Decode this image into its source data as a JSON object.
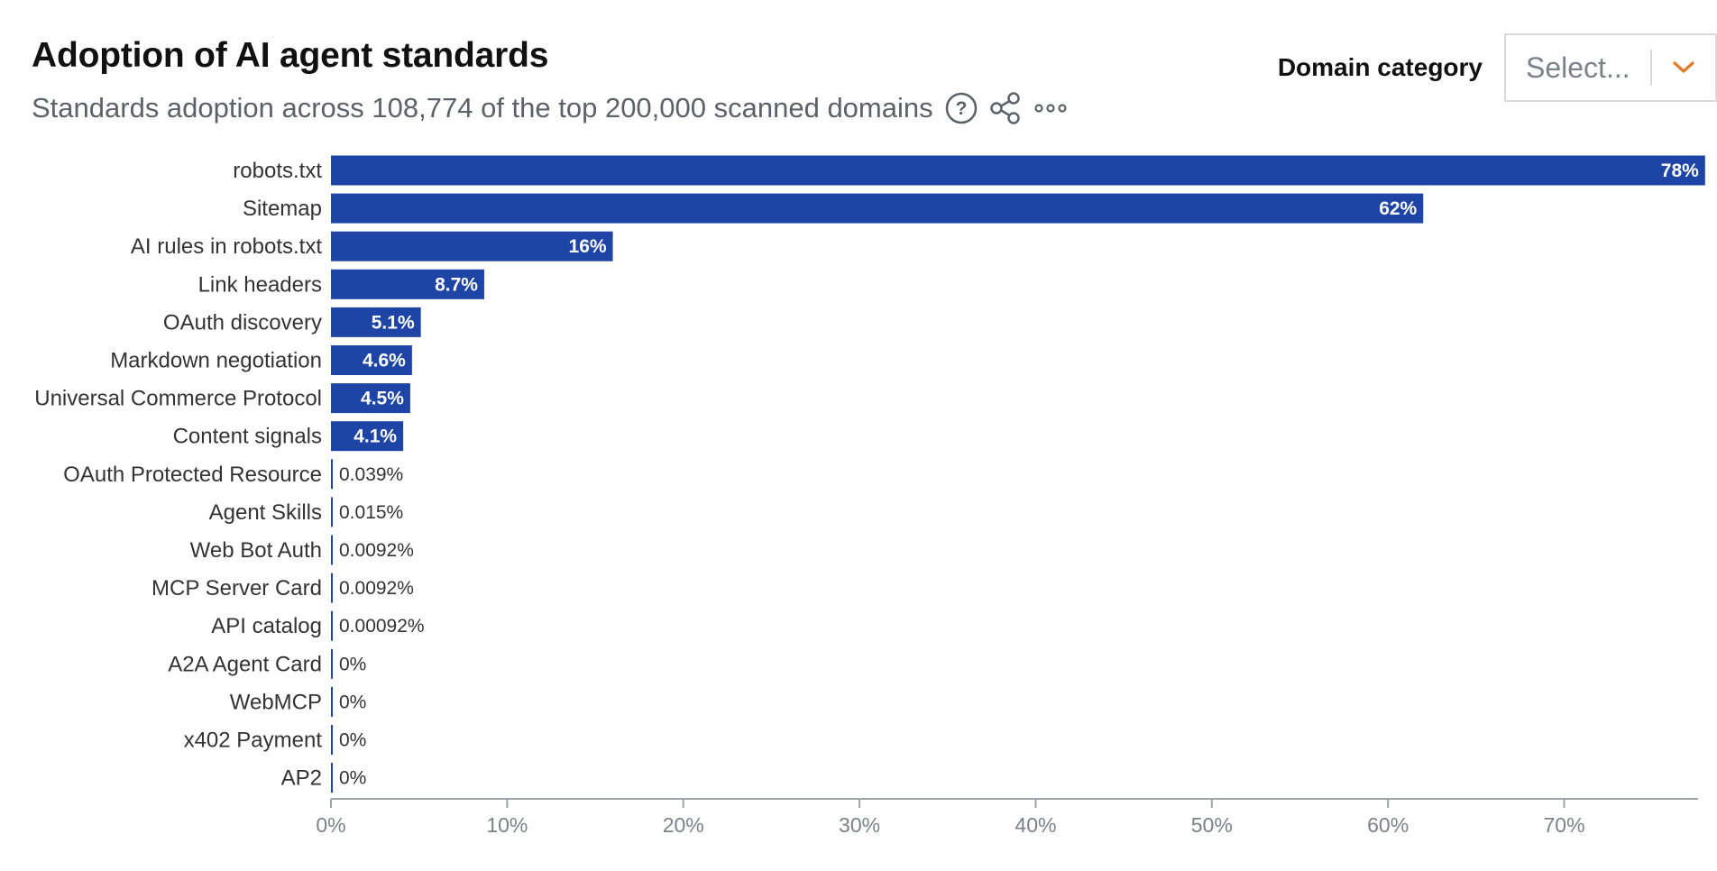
{
  "header": {
    "title": "Adoption of AI agent standards",
    "subtitle": "Standards adoption across 108,774 of the top 200,000 scanned domains",
    "icons": [
      "help-icon",
      "share-icon",
      "more-icon"
    ]
  },
  "filter": {
    "label": "Domain category",
    "placeholder": "Select..."
  },
  "colors": {
    "bar": "#1e45a6",
    "accent": "#e07b2a",
    "axis": "#a0a4aa",
    "text": "#333333",
    "tick_text": "#7d8188"
  },
  "chart_data": {
    "type": "bar",
    "orientation": "horizontal",
    "title": "",
    "xlabel": "",
    "ylabel": "",
    "xlim": [
      0,
      77.6
    ],
    "x_ticks": [
      0,
      10,
      20,
      30,
      40,
      50,
      60,
      70
    ],
    "x_tick_labels": [
      "0%",
      "10%",
      "20%",
      "30%",
      "40%",
      "50%",
      "60%",
      "70%"
    ],
    "categories": [
      "robots.txt",
      "Sitemap",
      "AI rules in robots.txt",
      "Link headers",
      "OAuth discovery",
      "Markdown negotiation",
      "Universal Commerce Protocol",
      "Content signals",
      "OAuth Protected Resource",
      "Agent Skills",
      "Web Bot Auth",
      "MCP Server Card",
      "API catalog",
      "A2A Agent Card",
      "WebMCP",
      "x402 Payment",
      "AP2"
    ],
    "values": [
      78,
      62,
      16,
      8.7,
      5.1,
      4.6,
      4.5,
      4.1,
      0.039,
      0.015,
      0.0092,
      0.0092,
      0.00092,
      0,
      0,
      0,
      0
    ],
    "value_labels": [
      "78%",
      "62%",
      "16%",
      "8.7%",
      "5.1%",
      "4.6%",
      "4.5%",
      "4.1%",
      "0.039%",
      "0.015%",
      "0.0092%",
      "0.0092%",
      "0.00092%",
      "0%",
      "0%",
      "0%",
      "0%"
    ],
    "grid": false,
    "legend": "none"
  }
}
